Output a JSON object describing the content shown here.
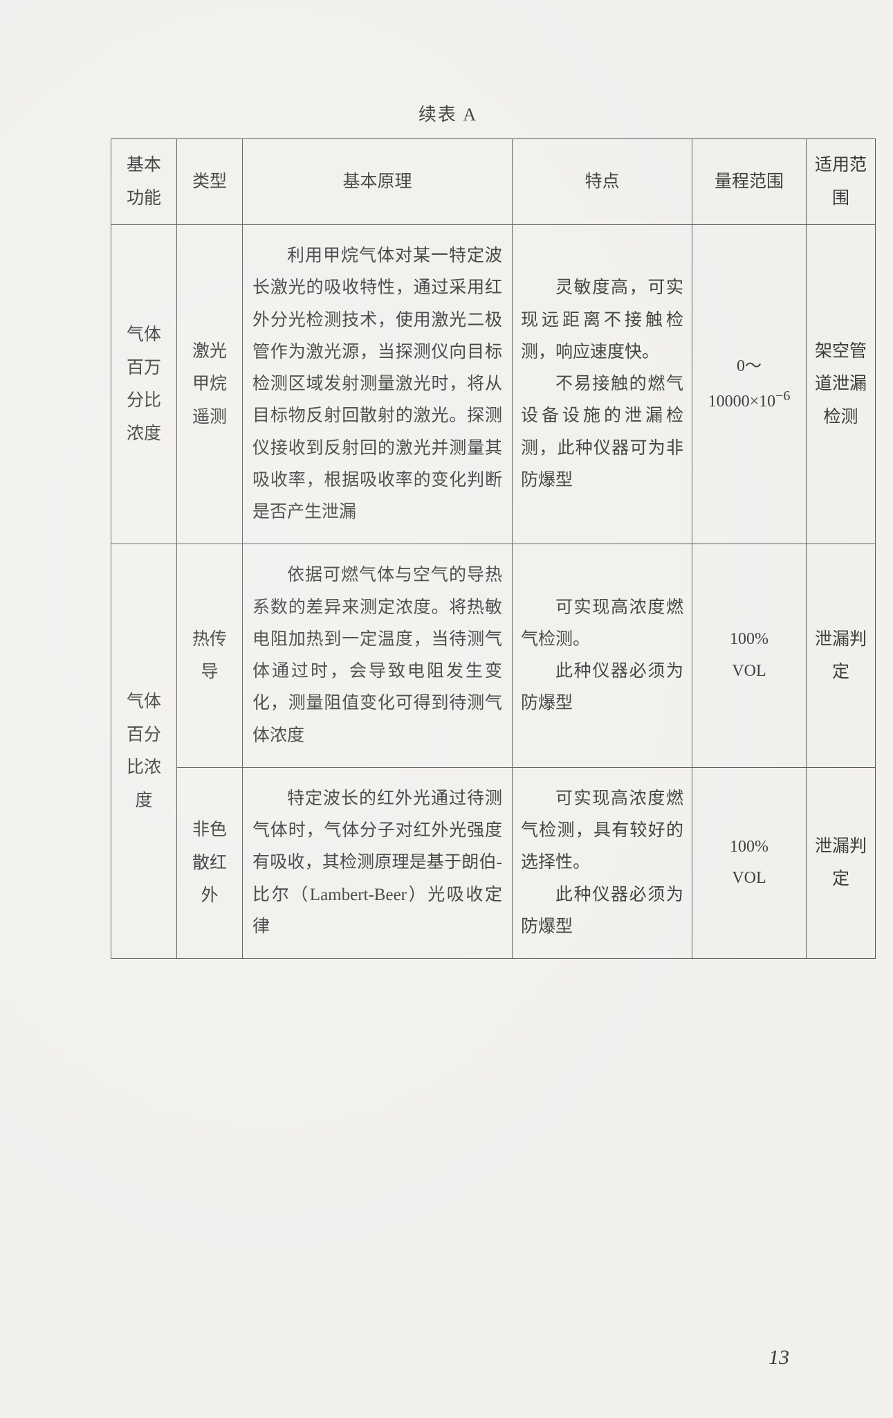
{
  "caption": "续表 A",
  "headers": {
    "func": "基本功能",
    "type": "类型",
    "principle": "基本原理",
    "feature": "特点",
    "range": "量程范围",
    "scope": "适用范围"
  },
  "rows": [
    {
      "func": "气体百万分比浓度",
      "type": "激光甲烷遥测",
      "principle_lines": [
        "利用甲烷气体对某一特定波长激光的吸收特性，通过采用红外分光检测技术，使用激光二极管作为激光源，当探测仪向目标检测区域发射测量激光时，将从目标物反射回散射的激光。探测仪接收到反射回的激光并测量其吸收率，根据吸收率的变化判断是否产生泄漏"
      ],
      "feature_lines": [
        "灵敏度高，可实现远距离不接触检测，响应速度快。",
        "不易接触的燃气设备设施的泄漏检测，此种仪器可为非防爆型"
      ],
      "range_html": "0～10000×10<sup>−6</sup>",
      "scope": "架空管道泄漏检测"
    },
    {
      "func": "气体百分比浓度",
      "type": "热传导",
      "principle_lines": [
        "依据可燃气体与空气的导热系数的差异来测定浓度。将热敏电阻加热到一定温度，当待测气体通过时，会导致电阻发生变化，测量阻值变化可得到待测气体浓度"
      ],
      "feature_lines": [
        "可实现高浓度燃气检测。",
        "此种仪器必须为防爆型"
      ],
      "range_html": "100%<br>VOL",
      "scope": "泄漏判定"
    },
    {
      "type": "非色散红外",
      "principle_lines": [
        "特定波长的红外光通过待测气体时，气体分子对红外光强度有吸收，其检测原理是基于朗伯-比尔（Lambert-Beer）光吸收定律"
      ],
      "feature_lines": [
        "可实现高浓度燃气检测，具有较好的选择性。",
        "此种仪器必须为防爆型"
      ],
      "range_html": "100%<br>VOL",
      "scope": "泄漏判定"
    }
  ],
  "page_number": "13"
}
